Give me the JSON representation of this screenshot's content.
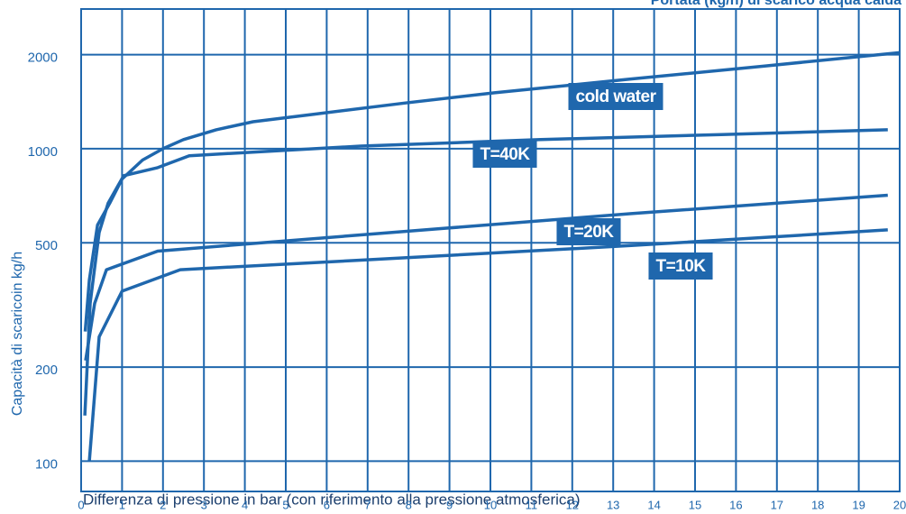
{
  "chart_data": {
    "type": "line",
    "title": "Portata (kg/h) di scarico acqua calda",
    "x_label": "Differenza di pressione in bar (con riferimento alla pressione atmosferica)",
    "y_label": "Capacità di scaricoin kg/h",
    "xlim": [
      0,
      20
    ],
    "xticks": [
      0,
      1,
      2,
      3,
      4,
      5,
      6,
      7,
      8,
      9,
      10,
      11,
      12,
      13,
      14,
      15,
      16,
      17,
      18,
      19,
      20
    ],
    "ylim": [
      80,
      2800
    ],
    "yticks": [
      100,
      200,
      500,
      1000,
      2000
    ],
    "y_scale": "log",
    "grid": true,
    "series": [
      {
        "name": "cold water",
        "color": "#1f67ad",
        "x": [
          0.1,
          0.2,
          0.4,
          0.7,
          1,
          1.5,
          2,
          2.5,
          3.3,
          4.2,
          5.7,
          7.9,
          10.1,
          13.4,
          16.7,
          20
        ],
        "values": [
          260,
          380,
          570,
          670,
          800,
          920,
          1000,
          1070,
          1150,
          1220,
          1290,
          1400,
          1510,
          1670,
          1840,
          2030
        ]
      },
      {
        "name": "T=40K",
        "color": "#1f67ad",
        "x": [
          0.09,
          0.22,
          0.44,
          0.66,
          1.04,
          1.87,
          2.64,
          6.83,
          11.23,
          15.64,
          19.71
        ],
        "values": [
          140,
          320,
          540,
          670,
          820,
          870,
          950,
          1020,
          1070,
          1110,
          1150
        ]
      },
      {
        "name": "T=20K",
        "color": "#1f67ad",
        "x": [
          0.11,
          0.33,
          0.62,
          1.87,
          6.83,
          13.44,
          19.71
        ],
        "values": [
          210,
          320,
          410,
          470,
          530,
          620,
          710
        ]
      },
      {
        "name": "T=10K",
        "color": "#1f67ad",
        "x": [
          0.2,
          0.44,
          1,
          2.42,
          6.83,
          13.44,
          19.71
        ],
        "values": [
          100,
          250,
          350,
          410,
          440,
          490,
          550
        ]
      }
    ]
  }
}
